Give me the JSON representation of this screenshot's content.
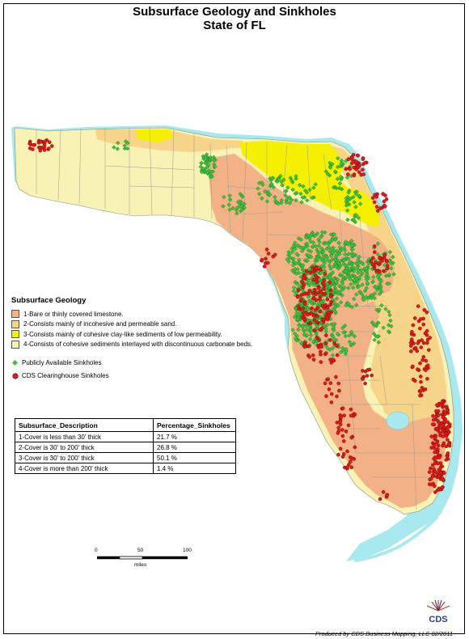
{
  "title_line1": "Subsurface Geology and Sinkholes",
  "title_line2": "State of FL",
  "colors": {
    "limestone": "#f2b285",
    "incohesive_sand": "#f6d48a",
    "clay_like": "#f4f000",
    "cohesive_interlayered": "#f9f2b5",
    "coast_buffer": "#a7e9ef",
    "public_sinkhole": "#3cc43c",
    "cds_sinkhole": "#d91c1c"
  },
  "legend": {
    "heading": "Subsurface Geology",
    "geology": [
      {
        "label": "1-Bare or thinly covered limestone.",
        "color": "#f2b285"
      },
      {
        "label": "2-Consists mainly of incohesive and permeable sand.",
        "color": "#f6d48a"
      },
      {
        "label": "3-Consists mainly of cohesive clay-like sediments of low permeability.",
        "color": "#f4f000"
      },
      {
        "label": "4-Consists of cohesive sediments interlayed with discontinuous carbonate beds.",
        "color": "#f9f2b5"
      }
    ],
    "public_sinkholes": "Publicly Available Sinkholes",
    "cds_sinkholes": "CDS Clearinghouse Sinkholes"
  },
  "table": {
    "headers": [
      "Subsurface_Description",
      "Percentage_Sinkholes"
    ],
    "rows": [
      [
        "1-Cover is less than 30' thick",
        "21.7 %"
      ],
      [
        "2-Cover is 30' to 200' thick",
        "26.8 %"
      ],
      [
        "3-Cover is 30' to 200' thick",
        "50.1 %"
      ],
      [
        "4-Cover is more than 200' thick",
        "1.4 %"
      ]
    ]
  },
  "scale_bar": {
    "ticks": [
      "0",
      "50",
      "100"
    ],
    "unit": "miles"
  },
  "credit": "Produced by CDS Business Mapping, LLC 02/2011",
  "logo_text": "CDS"
}
